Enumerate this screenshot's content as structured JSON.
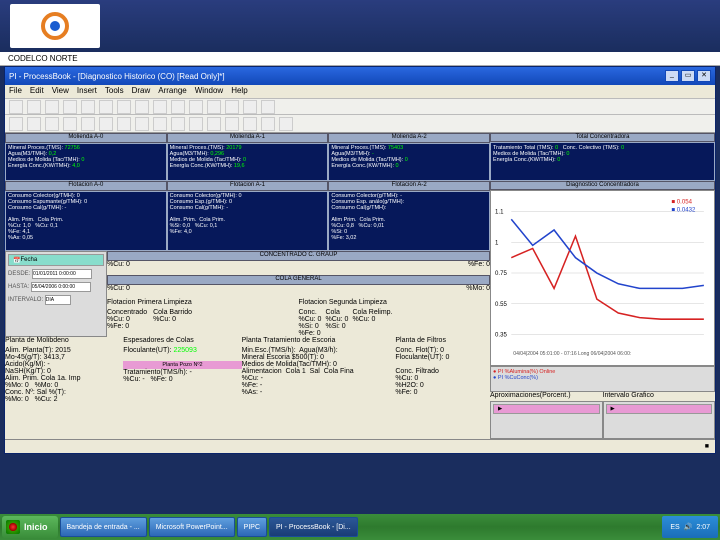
{
  "brand": {
    "codelco": "CODELCO NORTE"
  },
  "window": {
    "title": "PI - ProcessBook - [Diagnostico Historico (CO) [Read Only]*]",
    "min": "_",
    "max": "▭",
    "close": "✕"
  },
  "menu": {
    "file": "File",
    "edit": "Edit",
    "view": "View",
    "insert": "Insert",
    "tools": "Tools",
    "draw": "Draw",
    "arrange": "Arrange",
    "window": "Window",
    "help": "Help"
  },
  "hdr_row1": {
    "a": "Molienda A-0",
    "b": "Molienda A-1",
    "c": "Molienda A-2",
    "d": "Total Concentradora"
  },
  "mol": {
    "a0": {
      "l1": "Mineral Proces.(TMS):",
      "v1": "72756",
      "l2": "Agua(M3/TMH):",
      "v2": "0,2",
      "l3": "Medios de Molida (Tac/TMH):",
      "v3": "0",
      "l4": "Energía Conc.(KW/TMH):",
      "v4": "4,0"
    },
    "a1": {
      "l1": "Mineral Proces.(TMS):",
      "v1": "20179",
      "l2": "Agua(M3/TMH):",
      "v2": "0,296",
      "l3": "Medios de Molida (Tac/TMH):",
      "v3": "0",
      "l4": "Energía Conc.(KW/TMH):",
      "v4": "19,6"
    },
    "a2": {
      "l1": "Mineral Proces.(TMS):",
      "v1": "75403",
      "l2": "Agua(M3/TMH):",
      "v2": "-",
      "l3": "Medios de Molida (Tac/TMH):",
      "v3": "0",
      "l4": "Energía Conc.(KW/TMH):",
      "v4": "0"
    },
    "tot": {
      "l1": "Tratamiento Total (TMS):",
      "v1": "0",
      "l2": "Medios de Molida (Tac/TMH):",
      "v2": "0",
      "l3": "Energía Conc.(KW/TMH):",
      "v3": "0",
      "l4": "Conc. Colectivo (TMS):",
      "v4": "0"
    }
  },
  "flot_hdr": {
    "a": "Flotacion A-0",
    "b": "Flotacion A-1",
    "c": "Flotacion A-2",
    "d": "Diagnostico Concentradora"
  },
  "flot": {
    "a0": {
      "t": "Consumo Colector(g/TMH): 0\nConsumo Espumante(g/TMH): 0\nConsumo Cal(g/TMH): -\n\nAlim. Prim.  Cola Prim.\n%Cu: 1,0   %Cu: 0,1\n%Fe: 4,1\n%As: 0,05"
    },
    "a1": {
      "t": "Consumo Colector(g/TMH): 0\nConsumo Esp.(g/TMH): 0\nConsumo Cal(g/TMH): -\n\nAlim. Prim.  Cola Prim.\n%Si: 0,0   %Cu: 0,1\n%Fe: 4,0"
    },
    "a2": {
      "t": "Consumo Colector(g/TMH): -\nConsumo Esp. análo(g/TMH):\nConsumo Cal(g/TMH):\n\nAlim Prim.  Cola Prim.\n%Cu: 0,8   %Cu: 0,01\n%Si: 0\n%Fe: 3,02"
    }
  },
  "mid1": {
    "label": "CONCENTRADO C. GRAUP",
    "l": "%Cu: 0",
    "r": "%Fe: 0"
  },
  "mid2": {
    "label": "COLA GENERAL",
    "l": "%Cu: 0",
    "r": "%Mo: 0"
  },
  "ctrl": {
    "fecha": "Fecha",
    "desde": "DESDE:",
    "hasta": "HASTA:",
    "intervalo": "INTERVALO:",
    "d1": "01/01/2011 0:00:00",
    "d2": "05/04/2006 0:00:00",
    "unit": "DIA"
  },
  "chart": {
    "title": "",
    "series": [
      {
        "name": "PI %Alumina(%) Online",
        "color": "#d62222",
        "points": [
          [
            0,
            0.8
          ],
          [
            1,
            0.86
          ],
          [
            2,
            0.6
          ],
          [
            3,
            0.94
          ],
          [
            4,
            0.53
          ],
          [
            5,
            0.44
          ],
          [
            6,
            0.41
          ],
          [
            7,
            0.4
          ],
          [
            8,
            0.4
          ],
          [
            9,
            0.4
          ]
        ],
        "val_label": "0.054"
      },
      {
        "name": "PI %CuConc(%)",
        "color": "#2244cc",
        "points": [
          [
            0,
            1.05
          ],
          [
            1,
            0.88
          ],
          [
            2,
            0.98
          ],
          [
            3,
            0.8
          ],
          [
            4,
            0.7
          ],
          [
            5,
            0.63
          ],
          [
            6,
            0.6
          ],
          [
            7,
            0.6
          ],
          [
            8,
            0.6
          ],
          [
            9,
            0.62
          ]
        ],
        "val_label": "0.0432"
      }
    ],
    "ylim": [
      0.3,
      1.1
    ],
    "yticks": [
      0.35,
      0.55,
      0.75,
      1.0,
      1.1
    ],
    "xlim": [
      0,
      9
    ],
    "xlabel": "04/04|2004 05:01:00 - 07:16  Long 06/04|2004 06:00:",
    "grid_color": "#cccccc",
    "bg": "#ffffff",
    "line_width": 1.5
  },
  "limp_hdr": {
    "a": "Flotacion Primera Limpieza",
    "b": "Flotacion Segunda Limpieza"
  },
  "limp": {
    "a": {
      "l": "Concentrado\n%Cu: 0\n%Fe: 0",
      "r": "Cola Barrido\n%Cu: 0"
    },
    "b": {
      "l": "Conc.\n%Cu: 0\n%Si: 0\n%Fe: 0",
      "m": "Cola\n%Cu: 0\n%Si: 0",
      "r": "Cola Relimp.\n%Cu: 0"
    }
  },
  "bottom_hdr": {
    "a": "Planta de Molibdeno",
    "b": "Espesadores de Colas",
    "c": "Planta Tratamiento de Escoria",
    "d": "Planta de Filtros",
    "e": "Aproximaciones(Porcent.)",
    "f": "Intervalo Grafico"
  },
  "bottom": {
    "molib": "Alim. Planta(T): 2015\nMo-45(g/T): 3413,7\nAcido(Kg/M): -\nNaSH(Kg/T): 0\nAlim. Prim. Cola 1a. Imp\n%Mo: 0   %Mo: 0\nConc. Nº: Sal %(T):\n%Mo: 0   %Cu: 2",
    "esp_lbl": "Floculante(UT):",
    "esp_val": "225093",
    "esp_sub": "Planta Pozo Nº2",
    "esp_sub_body": "Tratamiento(TMS/h): -\n%Cu: -   %Fe: 0",
    "esc": "Min.Esc.(TMS/h):  Agua(M3/h):\nMineral Escoria $500(T): 0\nMedios de Molida(Tac/TMH): 0\nAlimentacion  Cola 1  Sal  Cola Fina\n%Cu: -\n%Fe: -\n%As: -",
    "filt": "Conc. Flot(T): 0\nFloculante(UT): 0\n\nConc. Filtrado\n%Cu: 0\n%H2O: 0\n%Fe: 0",
    "aprox": "",
    "inter": ""
  },
  "statusbar": {
    "coord": "■"
  },
  "taskbar": {
    "start": "Inicio",
    "t1": "Bandeja de entrada - ...",
    "t2": "Microsoft PowerPoint...",
    "t3": "PIPC",
    "t4": "PI - ProcessBook - [Di...",
    "tray": "ES",
    "time": "2:07"
  }
}
